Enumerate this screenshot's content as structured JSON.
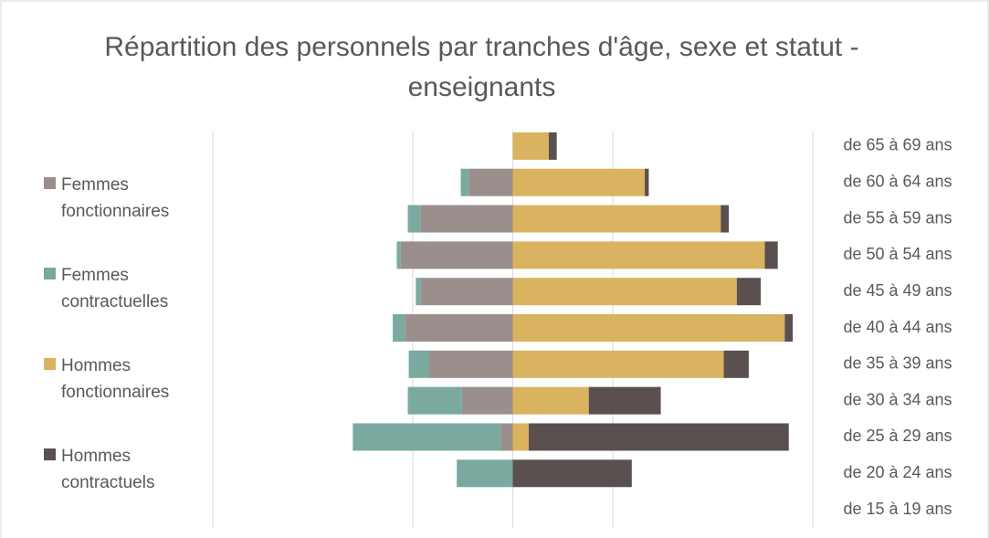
{
  "chart_data": {
    "type": "pyramid",
    "title": "Répartition des personnels par tranches d'âge, sexe et statut - enseignants",
    "categories": [
      "de 65 à 69 ans",
      "de 60 à 64 ans",
      "de 55 à 59 ans",
      "de 50 à 54 ans",
      "de 45 à 49 ans",
      "de 40 à 44 ans",
      "de 35 à 39 ans",
      "de 30 à 34 ans",
      "de 25 à 29 ans",
      "de 20 à 24 ans",
      "de 15 à 19 ans"
    ],
    "series": [
      {
        "name": "Femmes fonctionnaires",
        "color": "#9b8f8d",
        "values": [
          0,
          -44,
          -92,
          -112,
          -92,
          -108,
          -84,
          -51,
          -12,
          0,
          0
        ]
      },
      {
        "name": "Femmes contractuelles",
        "color": "#7aaa9f",
        "values": [
          0,
          -8,
          -13,
          -4,
          -5,
          -12,
          -20,
          -54,
          -148,
          -56,
          0
        ]
      },
      {
        "name": "Hommes fonctionnaires",
        "color": "#d9b35f",
        "values": [
          36,
          132,
          208,
          252,
          224,
          272,
          211,
          76,
          16,
          0,
          0
        ]
      },
      {
        "name": "Hommes contractuels",
        "color": "#5a5050",
        "values": [
          8,
          4,
          8,
          13,
          24,
          8,
          25,
          72,
          260,
          119,
          0
        ]
      }
    ],
    "xlim": [
      -300,
      300
    ],
    "xticks": [
      -300,
      -100,
      0,
      100,
      300
    ],
    "grid": true,
    "legend": "left"
  }
}
